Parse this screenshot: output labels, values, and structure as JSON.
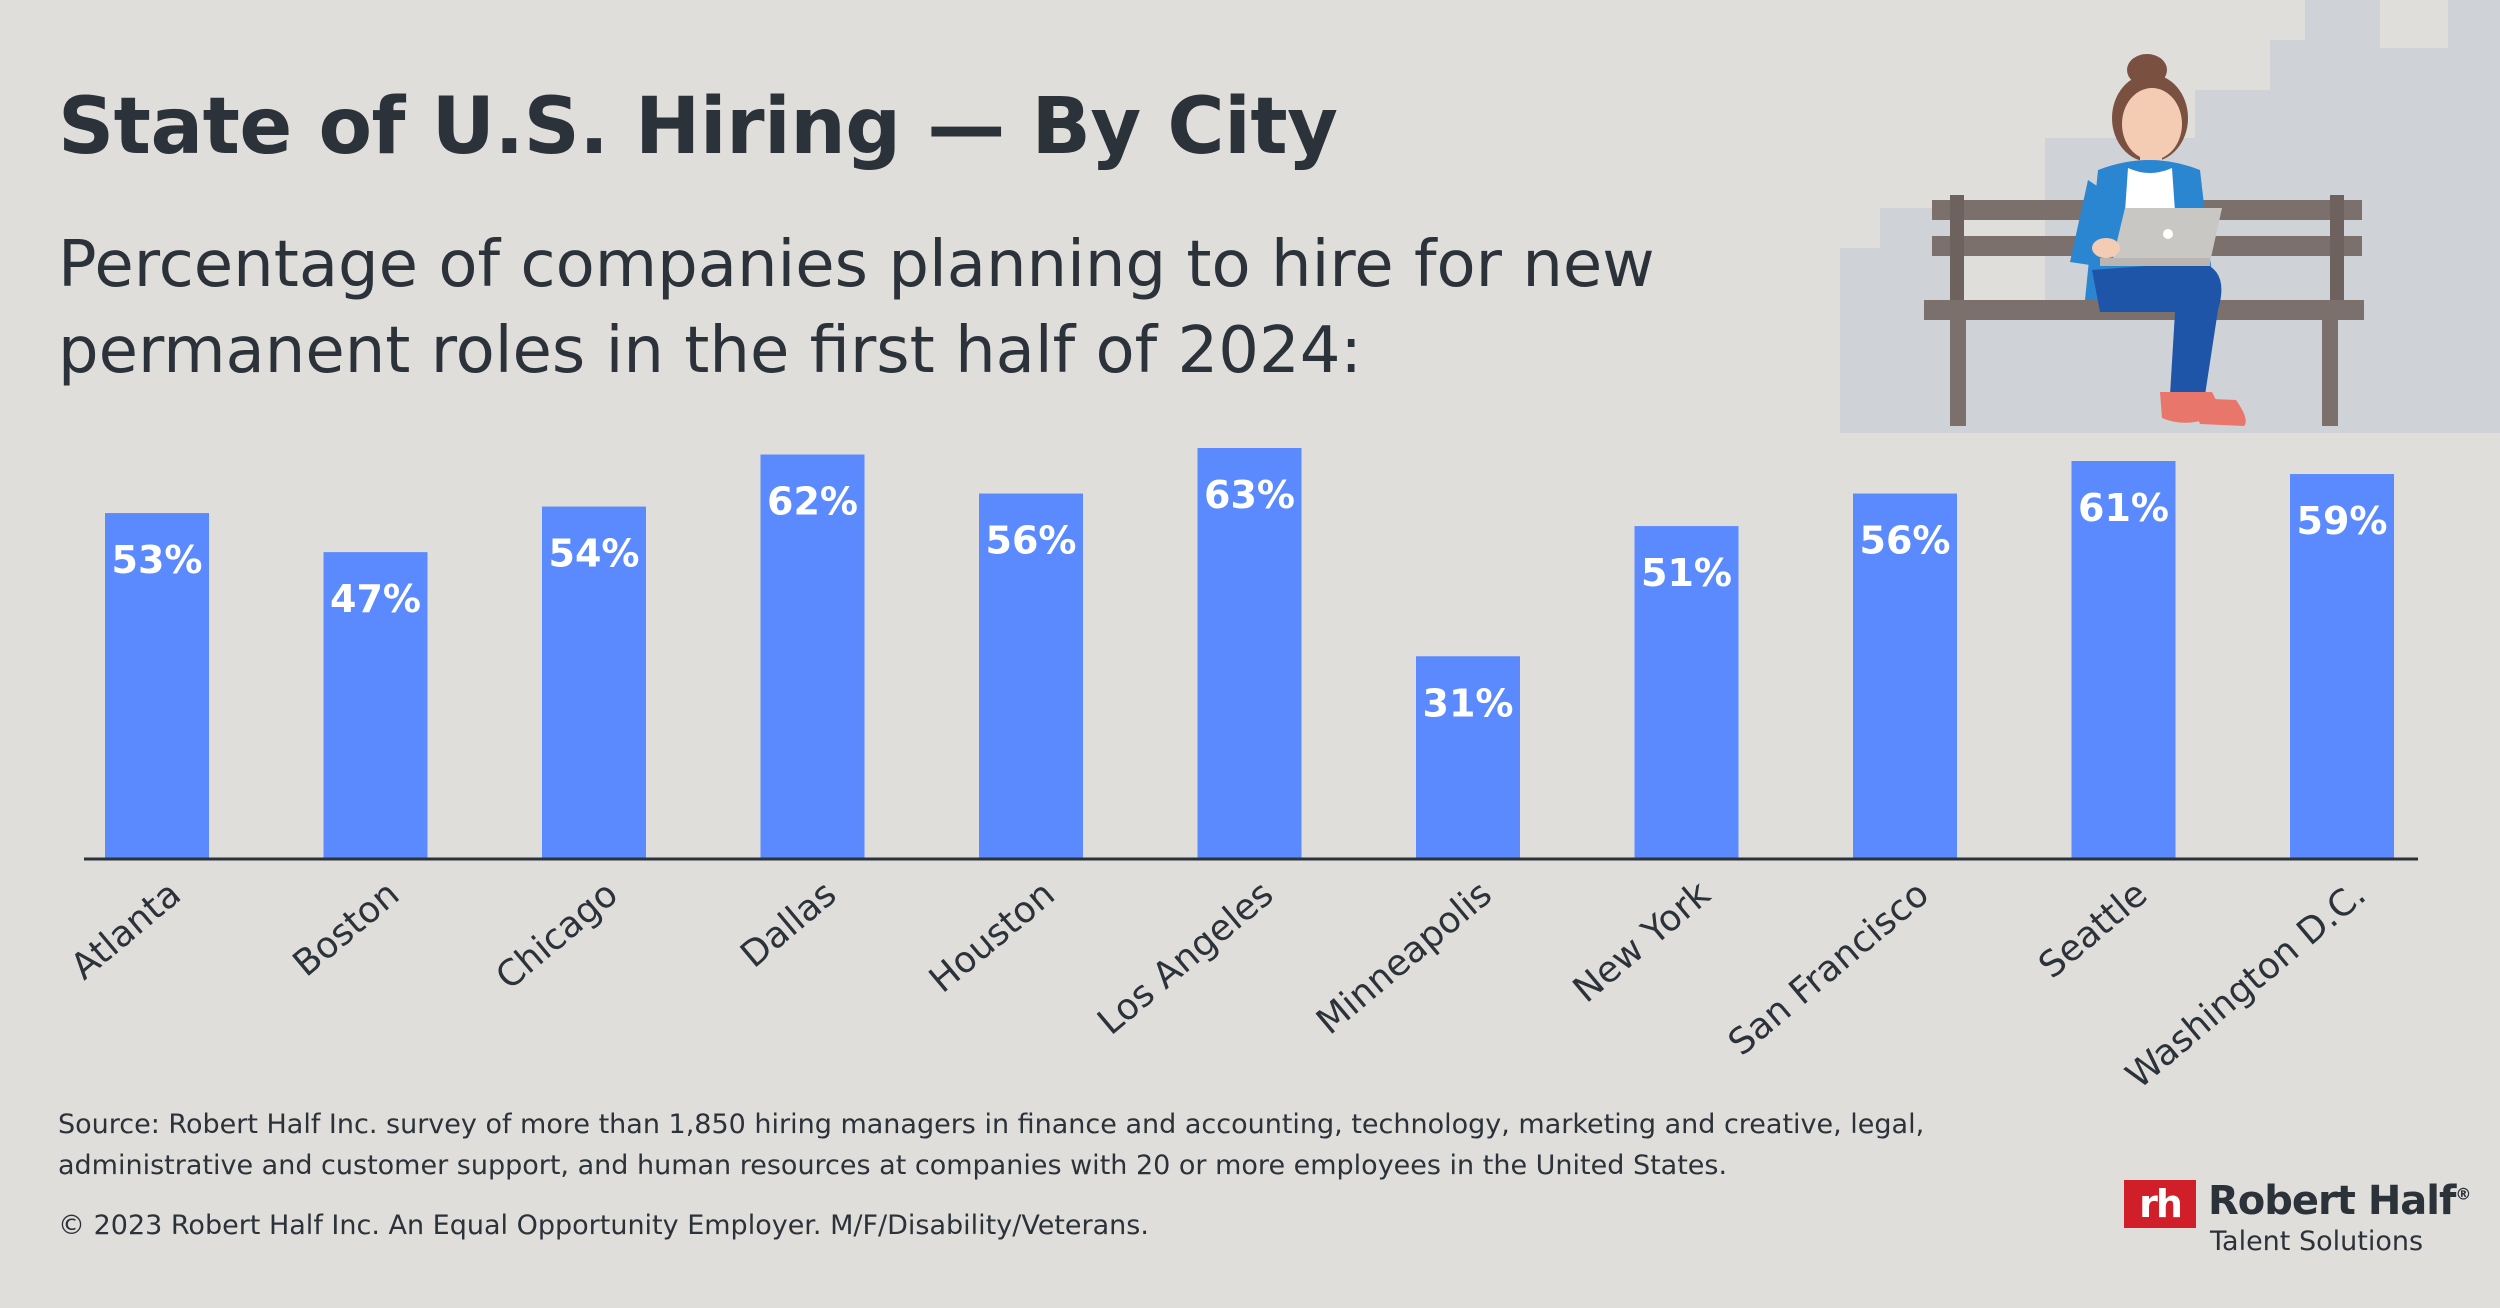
{
  "header": {
    "title": "State of U.S. Hiring — By City",
    "subtitle": "Percentage of companies planning to hire for new permanent roles in the first half of 2024:"
  },
  "chart_data": {
    "type": "bar",
    "categories": [
      "Atlanta",
      "Boston",
      "Chicago",
      "Dallas",
      "Houston",
      "Los Angeles",
      "Minneapolis",
      "New York",
      "San Francisco",
      "Seattle",
      "Washington D.C."
    ],
    "values": [
      53,
      47,
      54,
      62,
      56,
      63,
      31,
      51,
      56,
      61,
      59
    ],
    "value_labels": [
      "53%",
      "47%",
      "54%",
      "62%",
      "56%",
      "63%",
      "31%",
      "51%",
      "56%",
      "61%",
      "59%"
    ],
    "ylim": [
      0,
      63
    ],
    "grid": false,
    "legend": "none",
    "bar_color": "#5b8aff",
    "label_color": "#ffffff"
  },
  "footer": {
    "source": "Source: Robert Half Inc. survey of more than 1,850  hiring managers in finance and accounting, technology, marketing and creative, legal, administrative and customer support, and human resources at companies with 20 or more employees in the United States.",
    "copyright": "© 2023 Robert Half Inc. An Equal Opportunity Employer. M/F/Disability/Veterans."
  },
  "logo": {
    "mark": "rh",
    "name": "Robert Half",
    "registered": "®",
    "tagline": "Talent Solutions",
    "brand_color": "#d11f29"
  },
  "illustration": {
    "icon": "woman-on-bench-with-laptop-icon",
    "skyline_color": "#cfd3d8",
    "bench_color": "#7b706b",
    "jacket_color": "#2a86d1",
    "pants_color": "#1e55a8"
  }
}
